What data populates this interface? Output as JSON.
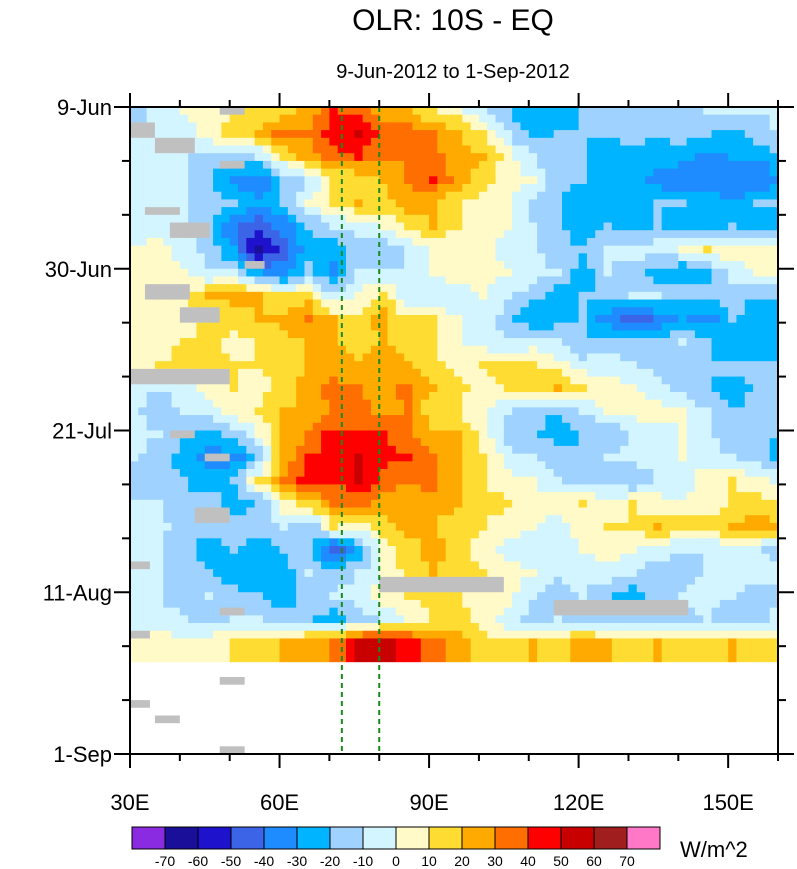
{
  "chart_data": {
    "type": "heatmap",
    "title": "OLR: 10S - EQ",
    "subtitle": "9-Jun-2012 to 1-Sep-2012",
    "xlabel": "",
    "ylabel": "",
    "x_range": [
      30,
      160
    ],
    "x_ticks": [
      {
        "value": 30,
        "label": "30E"
      },
      {
        "value": 60,
        "label": "60E"
      },
      {
        "value": 90,
        "label": "90E"
      },
      {
        "value": 120,
        "label": "120E"
      },
      {
        "value": 150,
        "label": "150E"
      }
    ],
    "y_range_days": [
      0,
      84
    ],
    "y_ticks": [
      {
        "value": 0,
        "label": "9-Jun"
      },
      {
        "value": 21,
        "label": "30-Jun"
      },
      {
        "value": 42,
        "label": "21-Jul"
      },
      {
        "value": 63,
        "label": "11-Aug"
      },
      {
        "value": 84,
        "label": "1-Sep"
      }
    ],
    "reference_lines_longitude": [
      72.5,
      80
    ],
    "missing_value_color": "#c0c0c0",
    "colorbar": {
      "units": "W/m^2",
      "levels": [
        -70,
        -60,
        -50,
        -40,
        -30,
        -20,
        -10,
        0,
        10,
        20,
        30,
        40,
        50,
        60,
        70
      ],
      "labels": [
        "-70",
        "-60",
        "-50",
        "-40",
        "-30",
        "-20",
        "-10",
        "0",
        "10",
        "20",
        "30",
        "40",
        "50",
        "60",
        "70"
      ],
      "colors": [
        "#8a2be2",
        "#1a0f99",
        "#1e12cc",
        "#3c64e6",
        "#1e8cff",
        "#00b4ff",
        "#a0d2ff",
        "#d2f5ff",
        "#fffac8",
        "#ffdc32",
        "#ffaa00",
        "#ff6e00",
        "#ff0000",
        "#c80000",
        "#a01e1e",
        "#ff78c8"
      ]
    },
    "anomaly_grid": {
      "x_start": 30,
      "x_step": 5,
      "y_step_days": 3,
      "rows": [
        [
          -15,
          -5,
          0,
          5,
          10,
          10,
          15,
          25,
          40,
          35,
          25,
          20,
          10,
          5,
          -10,
          -20,
          -30,
          -30,
          -20,
          -15,
          -20,
          -15,
          -15,
          -10,
          -10,
          -10,
          -5
        ],
        [
          -10,
          -5,
          -5,
          5,
          15,
          20,
          35,
          30,
          45,
          50,
          35,
          35,
          30,
          20,
          10,
          -10,
          -25,
          -20,
          -20,
          -20,
          -15,
          -20,
          -15,
          -20,
          -25,
          -15,
          -10
        ],
        [
          -10,
          -5,
          -10,
          -15,
          -15,
          -10,
          10,
          25,
          35,
          40,
          30,
          30,
          35,
          25,
          20,
          5,
          -10,
          -20,
          -20,
          -25,
          -25,
          -25,
          -25,
          -35,
          -30,
          -30,
          -20
        ],
        [
          -10,
          -5,
          -10,
          -20,
          -35,
          -40,
          -20,
          -10,
          10,
          10,
          20,
          30,
          40,
          25,
          15,
          5,
          0,
          -15,
          -20,
          -30,
          -25,
          -35,
          -40,
          -35,
          -40,
          -40,
          -30
        ],
        [
          -5,
          -5,
          -10,
          -15,
          -20,
          -25,
          -20,
          0,
          10,
          20,
          15,
          25,
          20,
          10,
          5,
          5,
          -15,
          -20,
          -30,
          -25,
          -25,
          -20,
          -20,
          -25,
          -30,
          -20,
          -20
        ],
        [
          -5,
          -5,
          -10,
          -20,
          -40,
          -50,
          -35,
          -20,
          -10,
          -5,
          0,
          15,
          20,
          10,
          5,
          0,
          -10,
          -20,
          -25,
          -20,
          -25,
          -20,
          -25,
          -25,
          -20,
          -25,
          -25
        ],
        [
          0,
          5,
          -5,
          -15,
          -30,
          -65,
          -45,
          -25,
          -25,
          -15,
          -20,
          -10,
          5,
          0,
          5,
          -5,
          -10,
          -15,
          -20,
          -10,
          -5,
          -5,
          0,
          10,
          5,
          5,
          0
        ],
        [
          5,
          5,
          0,
          -10,
          -10,
          -30,
          -35,
          -15,
          -35,
          -10,
          -10,
          -10,
          0,
          5,
          5,
          0,
          -5,
          -10,
          -25,
          -10,
          -15,
          -25,
          -30,
          -25,
          -5,
          0,
          0
        ],
        [
          5,
          10,
          10,
          20,
          25,
          20,
          10,
          15,
          -10,
          0,
          15,
          -10,
          -10,
          -5,
          0,
          -10,
          -15,
          -25,
          -20,
          -20,
          -10,
          -10,
          -15,
          -15,
          -15,
          -20,
          -20
        ],
        [
          5,
          0,
          5,
          10,
          15,
          20,
          25,
          30,
          20,
          15,
          25,
          10,
          10,
          0,
          -5,
          -15,
          -30,
          -25,
          -20,
          -35,
          -50,
          -40,
          -30,
          -35,
          -20,
          -25,
          -25
        ],
        [
          0,
          5,
          10,
          15,
          5,
          10,
          15,
          20,
          20,
          15,
          20,
          15,
          10,
          0,
          -5,
          -10,
          -5,
          -10,
          -20,
          -15,
          -15,
          -20,
          -10,
          -20,
          -30,
          -30,
          -30
        ],
        [
          5,
          10,
          15,
          15,
          10,
          10,
          15,
          20,
          25,
          20,
          25,
          20,
          15,
          5,
          10,
          15,
          10,
          5,
          -5,
          -5,
          -10,
          -15,
          -15,
          -20,
          -15,
          -15,
          -15
        ],
        [
          -5,
          -10,
          -5,
          5,
          10,
          5,
          15,
          25,
          35,
          30,
          25,
          35,
          20,
          15,
          5,
          10,
          15,
          20,
          10,
          5,
          0,
          -5,
          -15,
          -20,
          -25,
          -20,
          -20
        ],
        [
          -10,
          -15,
          -10,
          -5,
          5,
          10,
          20,
          20,
          30,
          35,
          25,
          30,
          10,
          10,
          0,
          -10,
          -15,
          -20,
          -10,
          0,
          5,
          5,
          0,
          -10,
          -20,
          -15,
          -15
        ],
        [
          -5,
          -10,
          -20,
          -25,
          -15,
          0,
          20,
          30,
          45,
          40,
          40,
          30,
          25,
          20,
          5,
          -15,
          -20,
          -25,
          -20,
          -20,
          -10,
          -5,
          0,
          -10,
          -15,
          -20,
          -20
        ],
        [
          -10,
          -15,
          -25,
          -35,
          -35,
          -20,
          25,
          40,
          45,
          50,
          45,
          40,
          30,
          25,
          10,
          -5,
          -10,
          -15,
          -20,
          -10,
          -5,
          -5,
          0,
          -5,
          -10,
          -15,
          -25
        ],
        [
          -15,
          -15,
          -20,
          -25,
          -20,
          10,
          30,
          45,
          40,
          50,
          35,
          30,
          35,
          20,
          10,
          5,
          0,
          -10,
          -15,
          -15,
          -20,
          -10,
          -5,
          5,
          10,
          5,
          -5
        ],
        [
          -10,
          -10,
          -20,
          -15,
          -25,
          -20,
          5,
          15,
          30,
          35,
          25,
          25,
          25,
          20,
          15,
          10,
          5,
          5,
          10,
          5,
          10,
          5,
          0,
          5,
          10,
          15,
          10
        ],
        [
          -10,
          -5,
          -20,
          -15,
          -15,
          -15,
          -10,
          -20,
          10,
          5,
          15,
          25,
          20,
          15,
          10,
          5,
          0,
          -5,
          5,
          10,
          10,
          20,
          15,
          15,
          20,
          25,
          20
        ],
        [
          -5,
          -10,
          -15,
          -25,
          -20,
          -25,
          -20,
          -15,
          -50,
          -30,
          5,
          15,
          25,
          15,
          5,
          -5,
          -5,
          -5,
          0,
          5,
          0,
          -5,
          -10,
          -10,
          -5,
          -10,
          -15
        ],
        [
          -5,
          -10,
          -15,
          -20,
          -30,
          -25,
          -25,
          -10,
          -15,
          -10,
          0,
          15,
          20,
          15,
          10,
          5,
          0,
          -10,
          -5,
          -5,
          -10,
          -15,
          -15,
          -10,
          -5,
          -5,
          -10
        ],
        [
          -5,
          -10,
          -15,
          -10,
          -15,
          -20,
          -25,
          -15,
          -10,
          -5,
          5,
          10,
          15,
          10,
          5,
          5,
          -10,
          -15,
          -10,
          -20,
          -25,
          -15,
          -10,
          -5,
          -10,
          -15,
          -10
        ],
        [
          -10,
          -5,
          -10,
          -15,
          -10,
          -10,
          -15,
          -20,
          -25,
          -15,
          -10,
          0,
          10,
          15,
          5,
          -5,
          -15,
          -10,
          -15,
          -20,
          -15,
          -20,
          -15,
          -10,
          -20,
          -15,
          -5
        ],
        [
          0,
          5,
          0,
          5,
          10,
          15,
          20,
          25,
          30,
          50,
          55,
          45,
          35,
          25,
          15,
          10,
          20,
          15,
          25,
          20,
          15,
          20,
          10,
          15,
          20,
          15,
          10
        ]
      ]
    },
    "missing_segments": [
      {
        "lon": [
          30,
          35
        ],
        "day_from": 2,
        "day_to": 4
      },
      {
        "lon": [
          35,
          43
        ],
        "day_from": 4,
        "day_to": 6
      },
      {
        "lon": [
          48,
          53
        ],
        "day_from": 0,
        "day_to": 1
      },
      {
        "lon": [
          48,
          53
        ],
        "day_from": 7,
        "day_to": 8
      },
      {
        "lon": [
          33,
          40
        ],
        "day_from": 13,
        "day_to": 14
      },
      {
        "lon": [
          38,
          46
        ],
        "day_from": 15,
        "day_to": 17
      },
      {
        "lon": [
          53,
          57
        ],
        "day_from": 20,
        "day_to": 21
      },
      {
        "lon": [
          33,
          42
        ],
        "day_from": 23,
        "day_to": 25
      },
      {
        "lon": [
          40,
          48
        ],
        "day_from": 26,
        "day_to": 28
      },
      {
        "lon": [
          30,
          50
        ],
        "day_from": 34,
        "day_to": 36
      },
      {
        "lon": [
          38,
          43
        ],
        "day_from": 42,
        "day_to": 43
      },
      {
        "lon": [
          45,
          50
        ],
        "day_from": 45,
        "day_to": 46
      },
      {
        "lon": [
          43,
          50
        ],
        "day_from": 52,
        "day_to": 54
      },
      {
        "lon": [
          30,
          34
        ],
        "day_from": 59,
        "day_to": 60
      },
      {
        "lon": [
          80,
          105
        ],
        "day_from": 61,
        "day_to": 63
      },
      {
        "lon": [
          115,
          142
        ],
        "day_from": 64,
        "day_to": 66
      },
      {
        "lon": [
          48,
          53
        ],
        "day_from": 65,
        "day_to": 66
      },
      {
        "lon": [
          30,
          34
        ],
        "day_from": 68,
        "day_to": 69
      },
      {
        "lon": [
          48,
          53
        ],
        "day_from": 74,
        "day_to": 75
      },
      {
        "lon": [
          30,
          34
        ],
        "day_from": 77,
        "day_to": 78
      },
      {
        "lon": [
          35,
          40
        ],
        "day_from": 79,
        "day_to": 80
      },
      {
        "lon": [
          48,
          53
        ],
        "day_from": 83,
        "day_to": 84
      }
    ]
  }
}
